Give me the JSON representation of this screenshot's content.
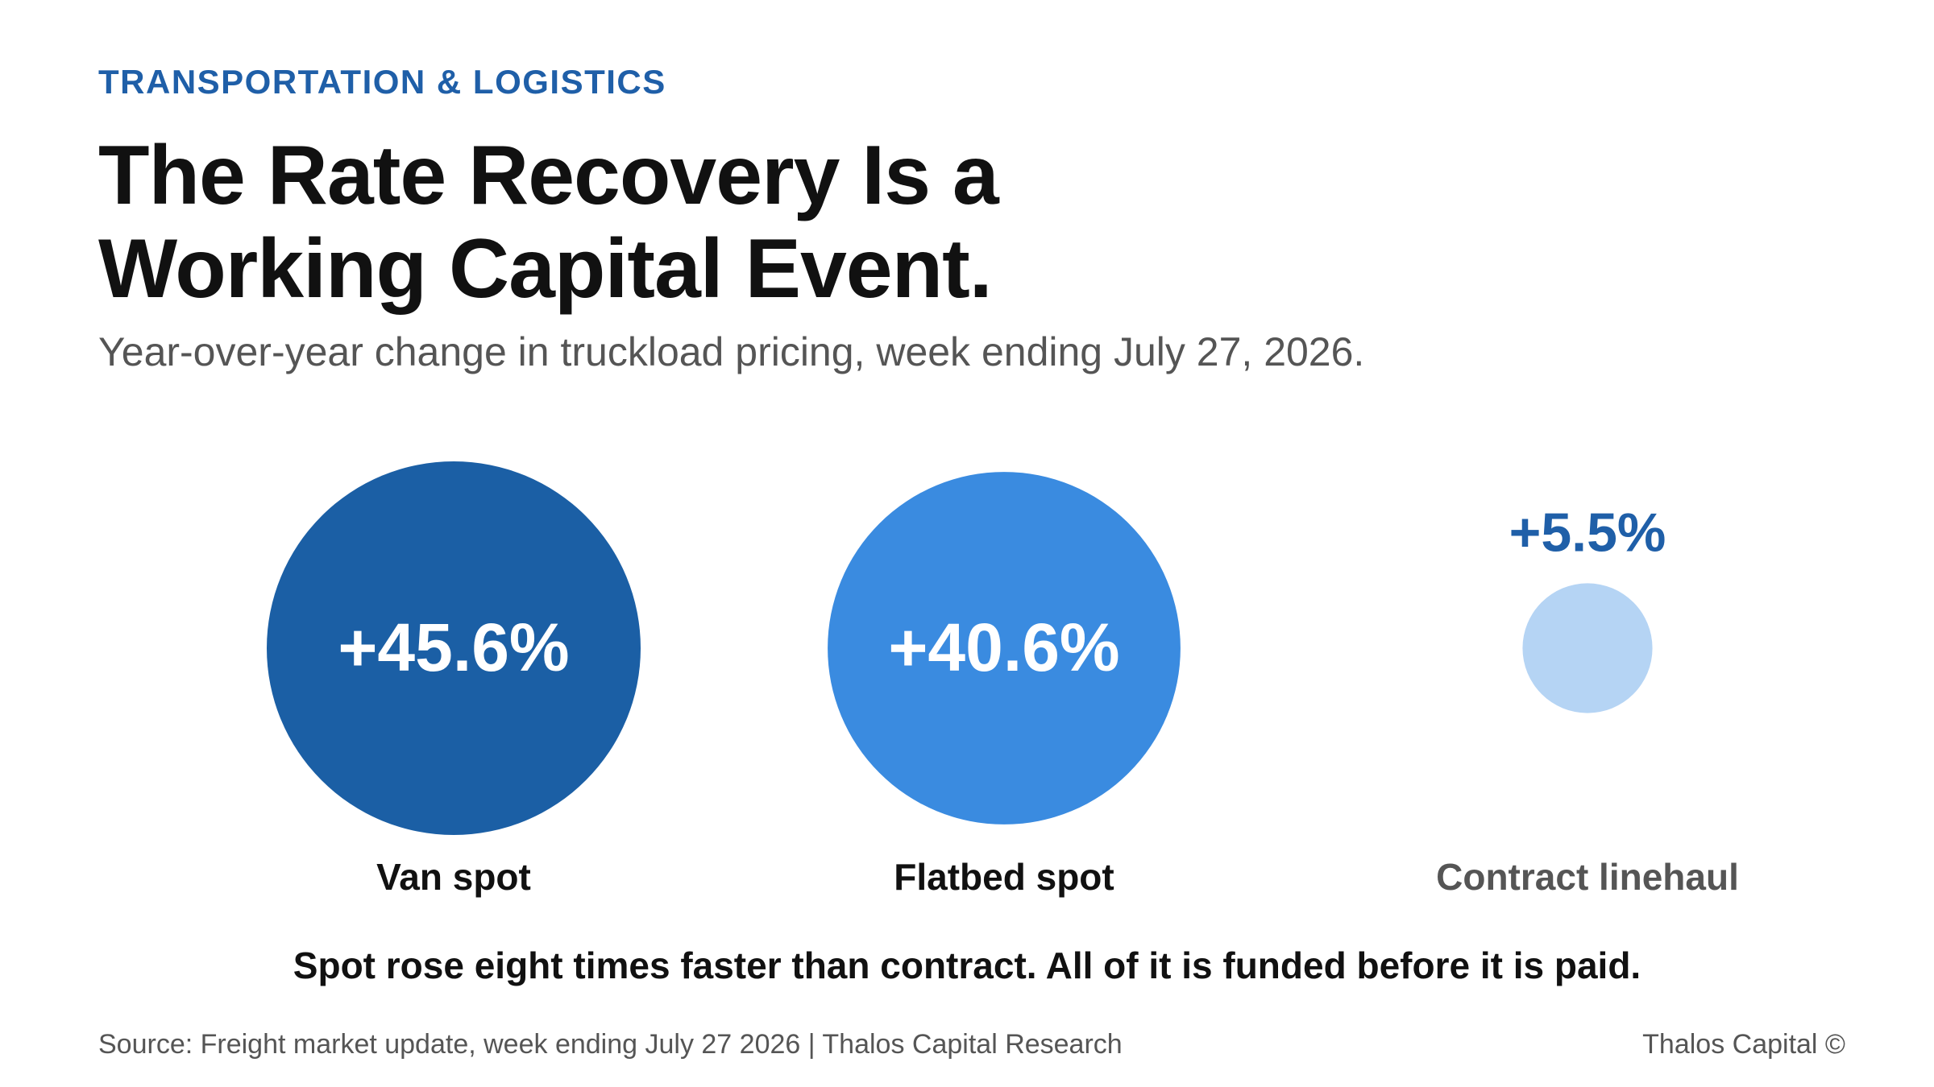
{
  "header": {
    "eyebrow": "TRANSPORTATION & LOGISTICS",
    "title": "The Rate Recovery Is a Working Capital Event.",
    "subtitle": "Year-over-year change in truckload pricing, week ending July 27, 2026."
  },
  "chart_data": {
    "type": "bubble",
    "unit": "%",
    "categories": [
      "Van spot",
      "Flatbed spot",
      "Contract linehaul"
    ],
    "values": [
      45.6,
      40.6,
      5.5
    ],
    "value_labels": [
      "+45.6%",
      "+40.6%",
      "+5.5%"
    ],
    "colors": [
      "#1b5fa5",
      "#3a8be0",
      "#b5d4f4"
    ],
    "label_colors": [
      "#111111",
      "#111111",
      "#555555"
    ],
    "outside_value_color": "#1f5fa8"
  },
  "footer": {
    "takeaway": "Spot rose eight times faster than contract. All of it is funded before it is paid.",
    "source": "Source: Freight market update, week ending July 27 2026 | Thalos Capital Research",
    "brand": "Thalos Capital ©"
  }
}
